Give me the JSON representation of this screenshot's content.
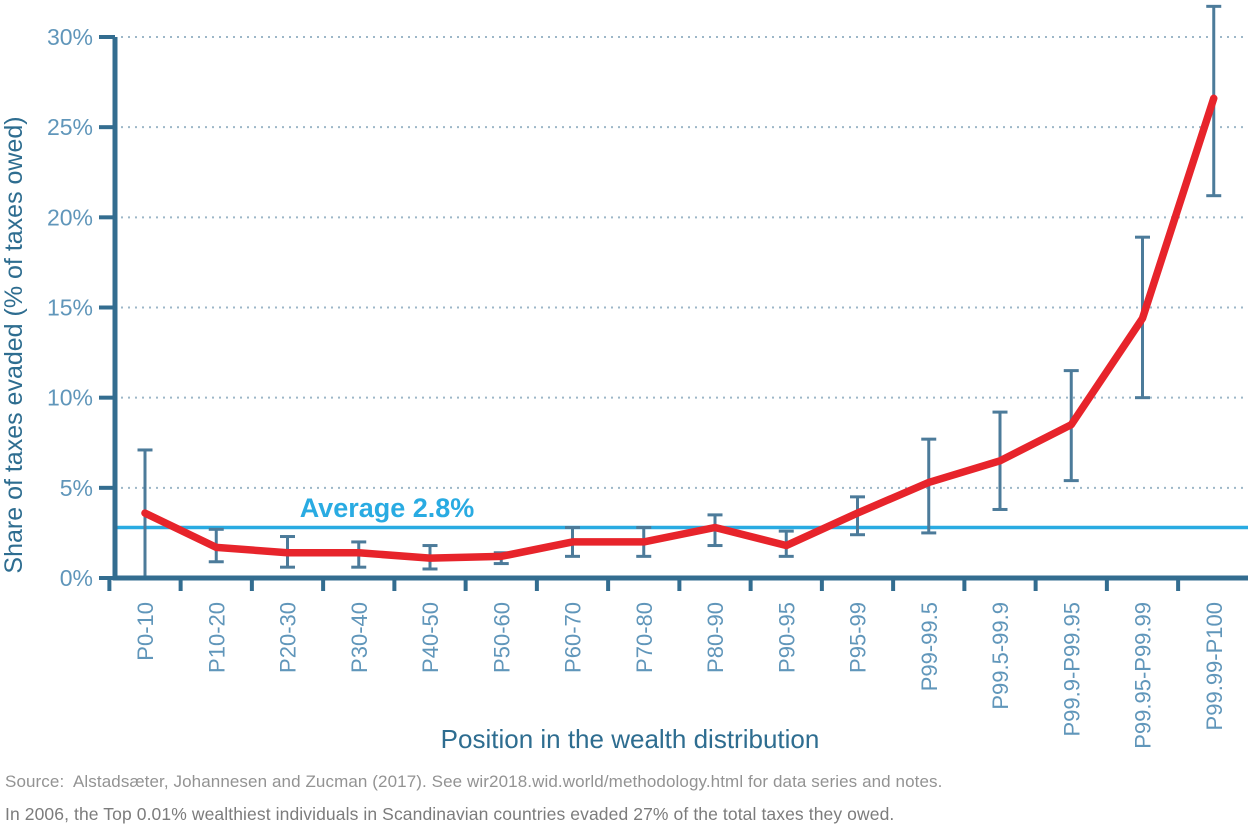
{
  "chart_data": {
    "type": "line",
    "title": "",
    "xlabel": "Position in the wealth distribution",
    "ylabel": "Share of taxes evaded (% of taxes owed)",
    "categories": [
      "P0-10",
      "P10-20",
      "P20-30",
      "P30-40",
      "P40-50",
      "P50-60",
      "P60-70",
      "P70-80",
      "P80-90",
      "P90-95",
      "P95-99",
      "P99-99.5",
      "P99.5-99.9",
      "P99.9-P99.95",
      "P99.95-P99.99",
      "P99.99-P100"
    ],
    "series": [
      {
        "name": "Share of taxes evaded",
        "values": [
          3.6,
          1.7,
          1.4,
          1.4,
          1.1,
          1.2,
          2.0,
          2.0,
          2.8,
          1.8,
          3.6,
          5.3,
          6.5,
          8.5,
          14.4,
          26.6
        ],
        "error_low": [
          0.0,
          0.9,
          0.6,
          0.6,
          0.5,
          0.8,
          1.2,
          1.2,
          1.8,
          1.2,
          2.4,
          2.5,
          3.8,
          5.4,
          10.0,
          21.2
        ],
        "error_high": [
          7.1,
          2.7,
          2.3,
          2.0,
          1.8,
          1.4,
          2.8,
          2.8,
          3.5,
          2.6,
          4.5,
          7.7,
          9.2,
          11.5,
          18.9,
          31.7
        ]
      }
    ],
    "average_line": {
      "value": 2.8,
      "label": "Average 2.8%"
    },
    "ylim": [
      0,
      30
    ],
    "yticks": [
      0,
      5,
      10,
      15,
      20,
      25,
      30
    ],
    "ytick_labels": [
      "0%",
      "5%",
      "10%",
      "15%",
      "20%",
      "25%",
      "30%"
    ],
    "grid": "horizontal-dotted",
    "legend": "none",
    "colors": {
      "line_red": "#e7242b",
      "average_blue": "#29abe2",
      "axis": "#336d90",
      "tick_label": "#6096ba",
      "axis_title": "#2e6d90",
      "gridline": "#9db7c8",
      "error_bar": "#4c7b9a"
    }
  },
  "footer": {
    "source": "Source:  Alstadsæter, Johannesen and Zucman (2017). See wir2018.wid.world/methodology.html for data series and notes.",
    "note": "In 2006, the Top 0.01% wealthiest individuals in Scandinavian countries evaded 27% of the total taxes they owed."
  }
}
